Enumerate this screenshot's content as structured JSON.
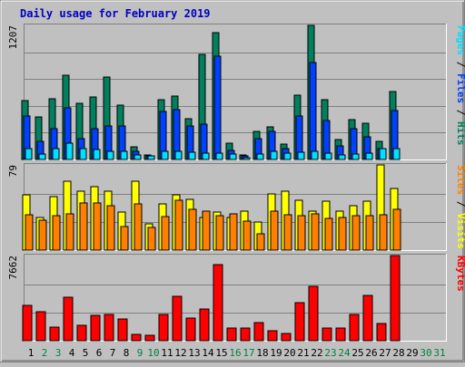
{
  "chart_data": {
    "type": "bar",
    "title": "Daily usage for February 2019",
    "days": [
      "1",
      "2",
      "3",
      "4",
      "5",
      "6",
      "7",
      "8",
      "9",
      "10",
      "11",
      "12",
      "13",
      "14",
      "15",
      "16",
      "17",
      "18",
      "19",
      "20",
      "21",
      "22",
      "23",
      "24",
      "25",
      "26",
      "27",
      "28",
      "29",
      "30",
      "31"
    ],
    "weekend_days": [
      2,
      3,
      9,
      10,
      16,
      17,
      23,
      24,
      30,
      31
    ],
    "panels": [
      {
        "id": "hits-files-pages",
        "max_label": "1207",
        "ymax": 1207,
        "ylabel_parts": [
          "Pages",
          "Files",
          "Hits"
        ],
        "series": [
          {
            "name": "Hits",
            "color": "#00805c",
            "values": [
              530,
              380,
              545,
              760,
              505,
              560,
              745,
              490,
              115,
              40,
              540,
              570,
              370,
              950,
              1140,
              150,
              40,
              255,
              290,
              135,
              575,
              1207,
              540,
              180,
              355,
              325,
              160,
              615
            ]
          },
          {
            "name": "Files",
            "color": "#0040ff",
            "values": [
              390,
              160,
              280,
              465,
              185,
              280,
              300,
              300,
              70,
              35,
              430,
              445,
              300,
              315,
              930,
              85,
              30,
              185,
              250,
              100,
              390,
              870,
              350,
              120,
              280,
              205,
              95,
              440
            ]
          },
          {
            "name": "Pages",
            "color": "#00e0ff",
            "values": [
              100,
              50,
              100,
              150,
              100,
              90,
              70,
              70,
              40,
              35,
              75,
              70,
              65,
              60,
              60,
              45,
              20,
              50,
              70,
              60,
              65,
              75,
              60,
              40,
              50,
              55,
              100,
              100
            ]
          }
        ]
      },
      {
        "id": "sites-visits",
        "max_label": "79",
        "ymax": 79,
        "ylabel_parts": [
          "Sites",
          "Visits"
        ],
        "series": [
          {
            "name": "Visits",
            "color": "#ffff00",
            "values": [
              51,
              30,
              50,
              64,
              55,
              59,
              55,
              35,
              64,
              24,
              43,
              51,
              47,
              30,
              35,
              30,
              36,
              26,
              52,
              55,
              46,
              36,
              45,
              36,
              41,
              45,
              79,
              57
            ]
          },
          {
            "name": "Sites",
            "color": "#ff8000",
            "values": [
              33,
              28,
              32,
              34,
              44,
              44,
              41,
              22,
              43,
              21,
              31,
              46,
              38,
              36,
              32,
              34,
              27,
              15,
              36,
              33,
              32,
              34,
              29,
              30,
              32,
              32,
              33,
              38
            ]
          }
        ]
      },
      {
        "id": "kbytes",
        "max_label": "7662",
        "ymax": 7662,
        "ylabel_parts": [
          "KBytes"
        ],
        "series": [
          {
            "name": "KBytes",
            "color": "#ff0000",
            "values": [
              3155,
              2612,
              1245,
              3916,
              1405,
              2289,
              2334,
              1926,
              550,
              509,
              2396,
              3965,
              2052,
              2874,
              6882,
              1138,
              1164,
              1608,
              926,
              620,
              3384,
              4907,
              1113,
              1108,
              2383,
              4115,
              1552,
              7662
            ]
          }
        ]
      }
    ]
  }
}
